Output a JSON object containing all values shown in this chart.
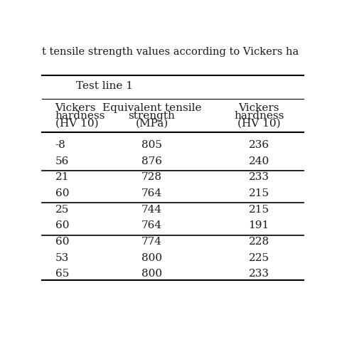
{
  "title": "t tensile strength values according to Vickers ha",
  "subtitle": "Test line 1",
  "col1_header": [
    "Vickers",
    "hardness",
    "(HV 10)"
  ],
  "col2_header": [
    "Equivalent tensile",
    "strength",
    "(MPa)"
  ],
  "col3_header": [
    "Vickers",
    "hardness",
    "(HV 10)"
  ],
  "col1_partial": [
    "-8",
    "56",
    "21",
    "60",
    "25",
    "60",
    "60",
    "53",
    "65"
  ],
  "col2_values": [
    "805",
    "876",
    "728",
    "764",
    "744",
    "764",
    "774",
    "800",
    "800"
  ],
  "col3_values": [
    "236",
    "240",
    "233",
    "215",
    "215",
    "191",
    "228",
    "225",
    "233"
  ],
  "group_separators": [
    2,
    4,
    6
  ],
  "bg_color": "#ffffff",
  "text_color": "#1a1a1a",
  "line_color": "#000000",
  "font_size": 11,
  "header_font_size": 11
}
